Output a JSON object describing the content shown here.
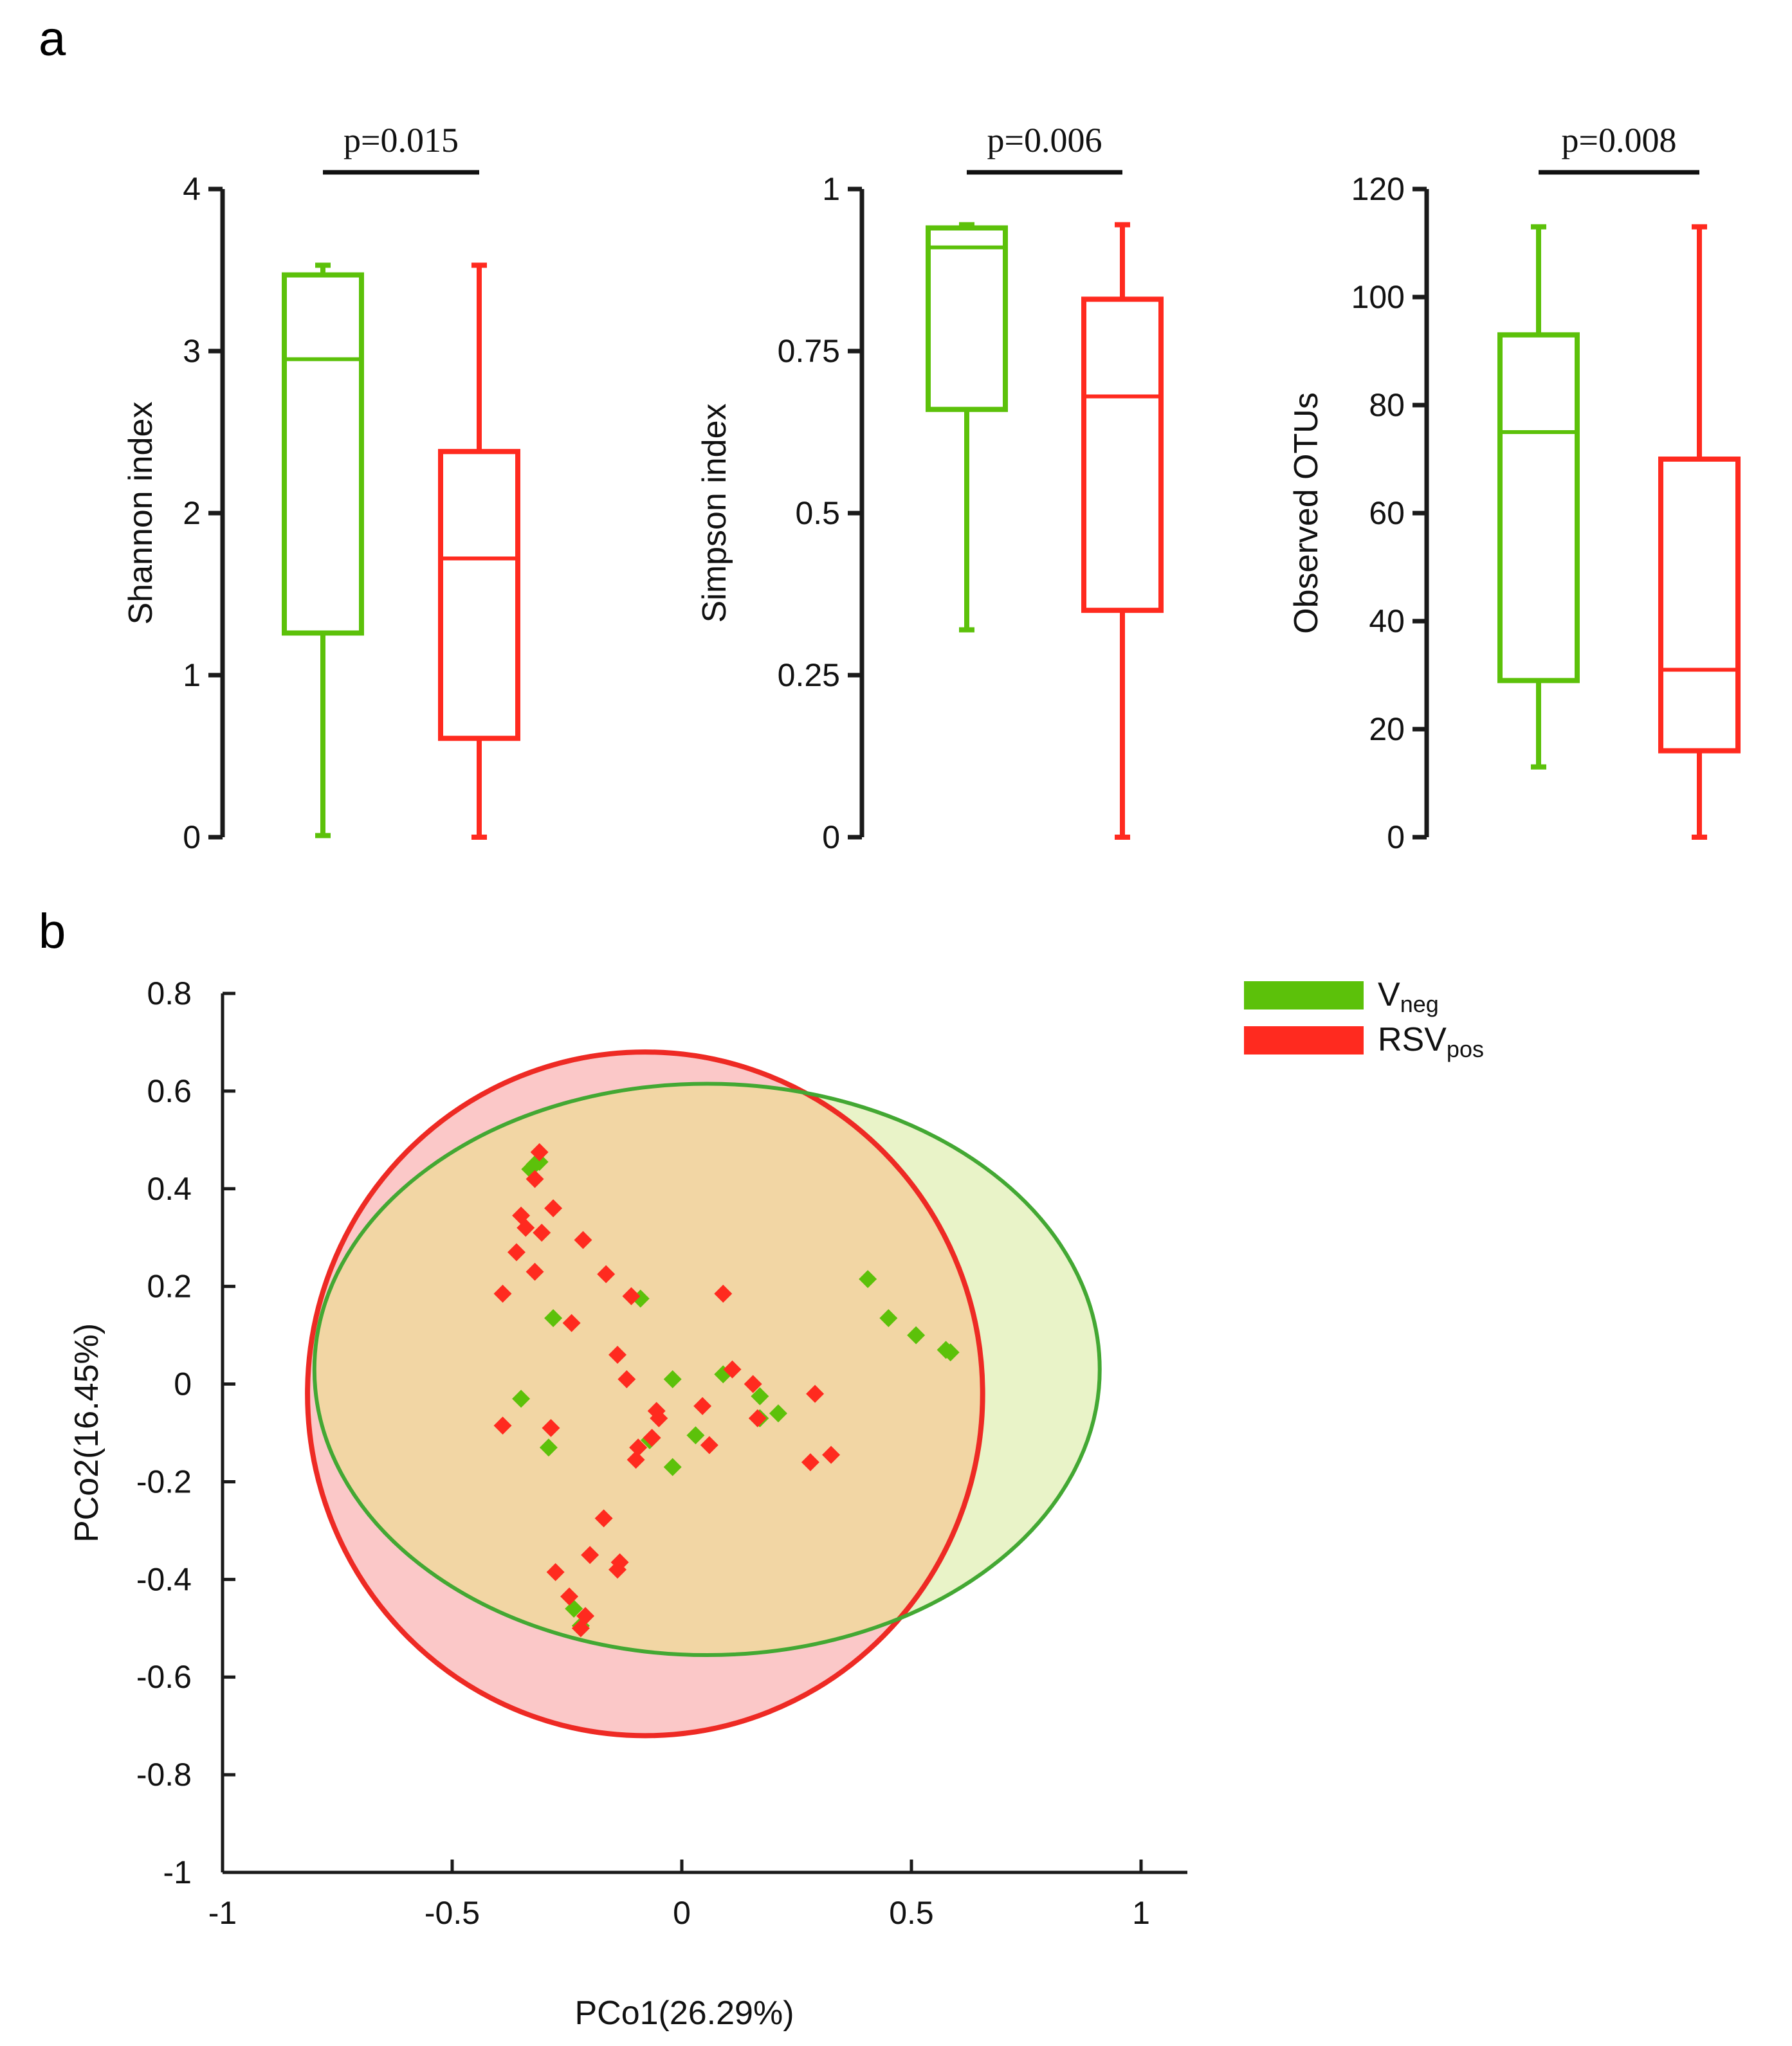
{
  "panel_labels": {
    "a": "a",
    "b": "b"
  },
  "colors": {
    "vneg": "#5cc10a",
    "rsv": "#ff2a1f",
    "vneg_fill": "#e9f3c8",
    "rsv_fill": "#fbc8c8",
    "overlap_fill": "#f2d6a4",
    "vneg_ellipse": "#43a833",
    "rsv_ellipse": "#ee2a24",
    "axis": "#1a1a1a"
  },
  "chart_data": [
    {
      "type": "box",
      "title": "",
      "ylabel": "Shannon index",
      "ylim": [
        0,
        4
      ],
      "yticks": [
        0,
        1,
        2,
        3,
        4
      ],
      "ytick_labels": [
        "0",
        "1",
        "2",
        "3",
        "4"
      ],
      "groups": [
        {
          "name": "Vneg",
          "min": 0.01,
          "q1": 1.26,
          "median": 2.95,
          "q3": 3.47,
          "max": 3.53
        },
        {
          "name": "RSVpos",
          "min": 0.0,
          "q1": 0.61,
          "median": 1.72,
          "q3": 2.38,
          "max": 3.53
        }
      ],
      "pvalue": "p=0.015"
    },
    {
      "type": "box",
      "title": "",
      "ylabel": "Simpson index",
      "ylim": [
        0,
        1
      ],
      "yticks": [
        0,
        0.25,
        0.5,
        0.75,
        1
      ],
      "ytick_labels": [
        "0",
        "0.25",
        "0.5",
        "0.75",
        "1"
      ],
      "groups": [
        {
          "name": "Vneg",
          "min": 0.32,
          "q1": 0.66,
          "median": 0.91,
          "q3": 0.94,
          "max": 0.945
        },
        {
          "name": "RSVpos",
          "min": 0.0,
          "q1": 0.35,
          "median": 0.68,
          "q3": 0.83,
          "max": 0.945
        }
      ],
      "pvalue": "p=0.006"
    },
    {
      "type": "box",
      "title": "",
      "ylabel": "Observed OTUs",
      "ylim": [
        0,
        120
      ],
      "yticks": [
        0,
        20,
        40,
        60,
        80,
        100,
        120
      ],
      "ytick_labels": [
        "0",
        "20",
        "40",
        "60",
        "80",
        "100",
        "120"
      ],
      "groups": [
        {
          "name": "Vneg",
          "min": 13,
          "q1": 29,
          "median": 75,
          "q3": 93,
          "max": 113
        },
        {
          "name": "RSVpos",
          "min": 0,
          "q1": 16,
          "median": 31,
          "q3": 70,
          "max": 113
        }
      ],
      "pvalue": "p=0.008"
    },
    {
      "type": "scatter",
      "title": "",
      "xlabel": "PCo1(26.29%)",
      "ylabel": "PCo2(16.45%)",
      "xlim": [
        -1,
        1.1
      ],
      "ylim": [
        -1,
        0.8
      ],
      "xticks": [
        -1,
        -0.5,
        0,
        0.5,
        1
      ],
      "xtick_labels": [
        "-1",
        "-0.5",
        "0",
        "0.5",
        "1"
      ],
      "yticks": [
        -1,
        -0.8,
        -0.6,
        -0.4,
        -0.2,
        0,
        0.2,
        0.4,
        0.6,
        0.8
      ],
      "ytick_labels": [
        "-1",
        "-0.8",
        "-0.6",
        "-0.4",
        "-0.2",
        "0",
        "0.2",
        "0.4",
        "0.6",
        "0.8"
      ],
      "legend": {
        "position": "top-right",
        "entries": [
          {
            "name": "V",
            "sub": "neg",
            "color_key": "vneg"
          },
          {
            "name": "RSV",
            "sub": "pos",
            "color_key": "rsv"
          }
        ]
      },
      "ellipses": [
        {
          "name": "Vneg",
          "cx": 0.055,
          "cy": 0.03,
          "rx": 0.855,
          "ry": 0.585
        },
        {
          "name": "RSVpos",
          "cx": -0.08,
          "cy": -0.02,
          "rx": 0.735,
          "ry": 0.7
        }
      ],
      "series": [
        {
          "name": "Vneg",
          "points": [
            [
              -0.32,
              0.45
            ],
            [
              -0.31,
              0.455
            ],
            [
              -0.33,
              0.44
            ],
            [
              -0.28,
              0.135
            ],
            [
              -0.09,
              0.175
            ],
            [
              -0.35,
              -0.03
            ],
            [
              -0.29,
              -0.13
            ],
            [
              -0.02,
              0.01
            ],
            [
              0.09,
              0.02
            ],
            [
              0.17,
              -0.025
            ],
            [
              0.17,
              -0.07
            ],
            [
              0.21,
              -0.06
            ],
            [
              0.03,
              -0.105
            ],
            [
              -0.02,
              -0.17
            ],
            [
              -0.07,
              -0.115
            ],
            [
              0.405,
              0.215
            ],
            [
              0.45,
              0.135
            ],
            [
              0.51,
              0.1
            ],
            [
              0.575,
              0.07
            ],
            [
              0.585,
              0.065
            ],
            [
              -0.235,
              -0.46
            ],
            [
              -0.22,
              -0.495
            ]
          ]
        },
        {
          "name": "RSVpos",
          "points": [
            [
              -0.31,
              0.475
            ],
            [
              -0.32,
              0.42
            ],
            [
              -0.35,
              0.345
            ],
            [
              -0.34,
              0.32
            ],
            [
              -0.28,
              0.36
            ],
            [
              -0.305,
              0.31
            ],
            [
              -0.36,
              0.27
            ],
            [
              -0.32,
              0.23
            ],
            [
              -0.39,
              0.185
            ],
            [
              -0.215,
              0.295
            ],
            [
              -0.165,
              0.225
            ],
            [
              -0.11,
              0.18
            ],
            [
              -0.24,
              0.125
            ],
            [
              0.09,
              0.185
            ],
            [
              -0.14,
              0.06
            ],
            [
              -0.12,
              0.01
            ],
            [
              0.11,
              0.03
            ],
            [
              0.155,
              0.0
            ],
            [
              0.165,
              -0.07
            ],
            [
              0.29,
              -0.02
            ],
            [
              -0.39,
              -0.085
            ],
            [
              -0.285,
              -0.09
            ],
            [
              -0.055,
              -0.055
            ],
            [
              -0.05,
              -0.07
            ],
            [
              0.045,
              -0.045
            ],
            [
              -0.065,
              -0.11
            ],
            [
              -0.095,
              -0.13
            ],
            [
              -0.1,
              -0.155
            ],
            [
              0.06,
              -0.125
            ],
            [
              0.28,
              -0.16
            ],
            [
              0.325,
              -0.145
            ],
            [
              -0.17,
              -0.275
            ],
            [
              -0.2,
              -0.35
            ],
            [
              -0.135,
              -0.365
            ],
            [
              -0.14,
              -0.38
            ],
            [
              -0.275,
              -0.385
            ],
            [
              -0.245,
              -0.435
            ],
            [
              -0.21,
              -0.475
            ],
            [
              -0.22,
              -0.5
            ]
          ]
        }
      ]
    }
  ]
}
